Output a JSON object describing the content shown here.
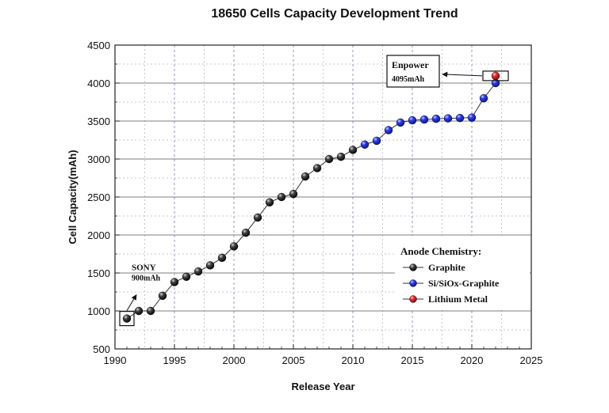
{
  "chart_data": {
    "type": "scatter",
    "title": "18650 Cells Capacity Development Trend",
    "xlabel": "Release Year",
    "ylabel": "Cell Capacity(mAh)",
    "xlim": [
      1990,
      2025
    ],
    "ylim": [
      500,
      4500
    ],
    "x_ticks": [
      1990,
      1995,
      2000,
      2005,
      2010,
      2015,
      2020,
      2025
    ],
    "y_ticks": [
      500,
      1000,
      1500,
      2000,
      2500,
      3000,
      3500,
      4000,
      4500
    ],
    "grid": true,
    "legend": {
      "title": "Anode Chemistry:",
      "placement": "bottom-right"
    },
    "colors": {
      "graphite": "#111111",
      "si_siox_graphite": "#1f2fd0",
      "lithium_metal": "#e02020",
      "connector": "#333333"
    },
    "series": [
      {
        "name": "Graphite",
        "points": [
          [
            1991,
            900
          ],
          [
            1992,
            1000
          ],
          [
            1993,
            1000
          ],
          [
            1994,
            1200
          ],
          [
            1995,
            1380
          ],
          [
            1996,
            1450
          ],
          [
            1997,
            1520
          ],
          [
            1998,
            1600
          ],
          [
            1999,
            1700
          ],
          [
            2000,
            1850
          ],
          [
            2001,
            2030
          ],
          [
            2002,
            2230
          ],
          [
            2003,
            2430
          ],
          [
            2004,
            2500
          ],
          [
            2005,
            2540
          ],
          [
            2006,
            2770
          ],
          [
            2007,
            2880
          ],
          [
            2008,
            3000
          ],
          [
            2009,
            3030
          ],
          [
            2010,
            3120
          ]
        ]
      },
      {
        "name": "Si/SiOx-Graphite",
        "points": [
          [
            2011,
            3190
          ],
          [
            2012,
            3240
          ],
          [
            2013,
            3380
          ],
          [
            2014,
            3480
          ],
          [
            2015,
            3510
          ],
          [
            2016,
            3520
          ],
          [
            2017,
            3530
          ],
          [
            2018,
            3535
          ],
          [
            2019,
            3540
          ],
          [
            2020,
            3545
          ],
          [
            2021,
            3800
          ],
          [
            2022,
            4000
          ]
        ]
      },
      {
        "name": "Lithium Metal",
        "points": [
          [
            2022,
            4095
          ]
        ]
      }
    ],
    "annotations": [
      {
        "lines": [
          "SONY",
          "900mAh"
        ],
        "x": 1991,
        "y": 900
      },
      {
        "lines": [
          "Enpower",
          "4095mAh"
        ],
        "x": 2022,
        "y": 4095
      }
    ]
  }
}
